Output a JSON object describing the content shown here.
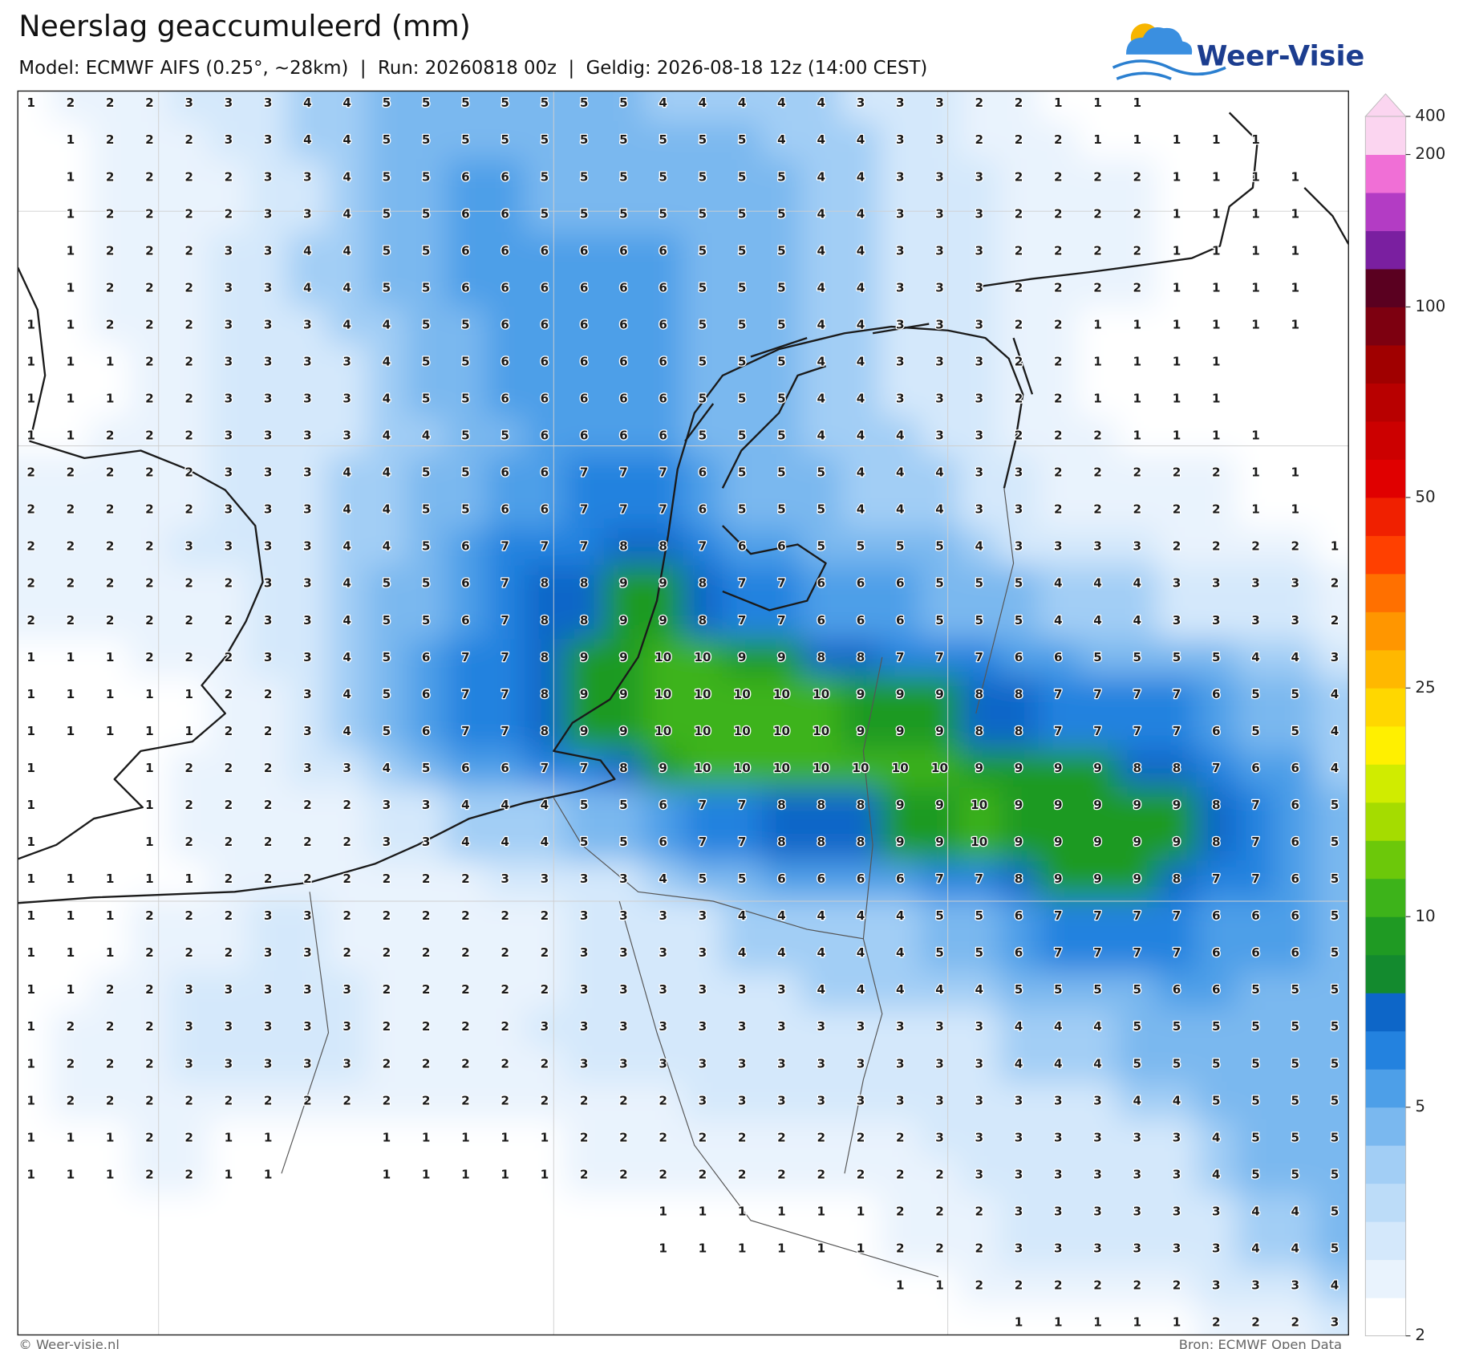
{
  "header": {
    "title": "Neerslag geaccumuleerd (mm)",
    "subtitle": "Model: ECMWF AIFS (0.25°, ~28km)  |  Run: 20260818 00z  |  Geldig: 2026-08-18 12z (14:00 CEST)",
    "logo": "Weer-Visie"
  },
  "map": {
    "grid": [
      [
        1,
        2,
        2,
        2,
        3,
        3,
        3,
        4,
        4,
        5,
        5,
        5,
        5,
        5,
        5,
        5,
        4,
        4,
        4,
        4,
        4,
        3,
        3,
        3,
        2,
        2,
        1,
        1,
        1,
        null,
        null,
        null,
        null,
        null
      ],
      [
        null,
        1,
        2,
        2,
        2,
        3,
        3,
        4,
        4,
        5,
        5,
        5,
        5,
        5,
        5,
        5,
        5,
        5,
        5,
        4,
        4,
        4,
        3,
        3,
        2,
        2,
        2,
        1,
        1,
        1,
        1,
        1,
        null,
        null
      ],
      [
        null,
        1,
        2,
        2,
        2,
        2,
        3,
        3,
        4,
        5,
        5,
        6,
        6,
        5,
        5,
        5,
        5,
        5,
        5,
        5,
        4,
        4,
        3,
        3,
        3,
        2,
        2,
        2,
        2,
        1,
        1,
        1,
        1,
        null
      ],
      [
        null,
        1,
        2,
        2,
        2,
        2,
        3,
        3,
        4,
        5,
        5,
        6,
        6,
        5,
        5,
        5,
        5,
        5,
        5,
        5,
        4,
        4,
        3,
        3,
        3,
        2,
        2,
        2,
        2,
        1,
        1,
        1,
        1,
        null
      ],
      [
        null,
        1,
        2,
        2,
        2,
        3,
        3,
        4,
        4,
        5,
        5,
        6,
        6,
        6,
        6,
        6,
        6,
        5,
        5,
        5,
        4,
        4,
        3,
        3,
        3,
        2,
        2,
        2,
        2,
        1,
        1,
        1,
        1,
        null
      ],
      [
        null,
        1,
        2,
        2,
        2,
        3,
        3,
        4,
        4,
        5,
        5,
        6,
        6,
        6,
        6,
        6,
        6,
        5,
        5,
        5,
        4,
        4,
        3,
        3,
        3,
        2,
        2,
        2,
        2,
        1,
        1,
        1,
        1,
        null
      ],
      [
        1,
        1,
        2,
        2,
        2,
        3,
        3,
        3,
        4,
        4,
        5,
        5,
        6,
        6,
        6,
        6,
        6,
        5,
        5,
        5,
        4,
        4,
        3,
        3,
        3,
        2,
        2,
        1,
        1,
        1,
        1,
        1,
        1,
        null
      ],
      [
        1,
        1,
        1,
        2,
        2,
        3,
        3,
        3,
        3,
        4,
        5,
        5,
        6,
        6,
        6,
        6,
        6,
        5,
        5,
        5,
        4,
        4,
        3,
        3,
        3,
        2,
        2,
        1,
        1,
        1,
        1,
        null,
        null,
        null
      ],
      [
        1,
        1,
        1,
        2,
        2,
        3,
        3,
        3,
        3,
        4,
        5,
        5,
        6,
        6,
        6,
        6,
        6,
        5,
        5,
        5,
        4,
        4,
        3,
        3,
        3,
        2,
        2,
        1,
        1,
        1,
        1,
        null,
        null,
        null
      ],
      [
        1,
        1,
        2,
        2,
        2,
        3,
        3,
        3,
        3,
        4,
        4,
        5,
        5,
        6,
        6,
        6,
        6,
        5,
        5,
        5,
        4,
        4,
        4,
        3,
        3,
        2,
        2,
        2,
        1,
        1,
        1,
        1,
        null,
        null
      ],
      [
        2,
        2,
        2,
        2,
        2,
        3,
        3,
        3,
        4,
        4,
        5,
        5,
        6,
        6,
        7,
        7,
        7,
        6,
        5,
        5,
        5,
        4,
        4,
        4,
        3,
        3,
        2,
        2,
        2,
        2,
        2,
        1,
        1,
        null
      ],
      [
        2,
        2,
        2,
        2,
        2,
        3,
        3,
        3,
        4,
        4,
        5,
        5,
        6,
        6,
        7,
        7,
        7,
        6,
        5,
        5,
        5,
        4,
        4,
        4,
        3,
        3,
        2,
        2,
        2,
        2,
        2,
        1,
        1,
        null
      ],
      [
        2,
        2,
        2,
        2,
        3,
        3,
        3,
        3,
        4,
        4,
        5,
        6,
        7,
        7,
        7,
        8,
        8,
        7,
        6,
        6,
        5,
        5,
        5,
        5,
        4,
        3,
        3,
        3,
        3,
        2,
        2,
        2,
        2,
        1
      ],
      [
        2,
        2,
        2,
        2,
        2,
        2,
        3,
        3,
        4,
        5,
        5,
        6,
        7,
        8,
        8,
        9,
        9,
        8,
        7,
        7,
        6,
        6,
        6,
        5,
        5,
        5,
        4,
        4,
        4,
        3,
        3,
        3,
        3,
        2
      ],
      [
        2,
        2,
        2,
        2,
        2,
        2,
        3,
        3,
        4,
        5,
        5,
        6,
        7,
        8,
        8,
        9,
        9,
        8,
        7,
        7,
        6,
        6,
        6,
        5,
        5,
        5,
        4,
        4,
        4,
        3,
        3,
        3,
        3,
        2
      ],
      [
        1,
        1,
        1,
        2,
        2,
        2,
        3,
        3,
        4,
        5,
        6,
        7,
        7,
        8,
        9,
        9,
        10,
        10,
        9,
        9,
        8,
        8,
        7,
        7,
        7,
        6,
        6,
        5,
        5,
        5,
        5,
        4,
        4,
        3
      ],
      [
        1,
        1,
        1,
        1,
        1,
        2,
        2,
        3,
        4,
        5,
        6,
        7,
        7,
        8,
        9,
        9,
        10,
        10,
        10,
        10,
        10,
        9,
        9,
        9,
        8,
        8,
        7,
        7,
        7,
        7,
        6,
        5,
        5,
        4
      ],
      [
        1,
        1,
        1,
        1,
        1,
        2,
        2,
        3,
        4,
        5,
        6,
        7,
        7,
        8,
        9,
        9,
        10,
        10,
        10,
        10,
        10,
        9,
        9,
        9,
        8,
        8,
        7,
        7,
        7,
        7,
        6,
        5,
        5,
        4
      ],
      [
        1,
        null,
        null,
        1,
        2,
        2,
        2,
        3,
        3,
        4,
        5,
        6,
        6,
        7,
        7,
        8,
        9,
        10,
        10,
        10,
        10,
        10,
        10,
        10,
        9,
        9,
        9,
        9,
        8,
        8,
        7,
        6,
        6,
        4
      ],
      [
        1,
        null,
        null,
        1,
        2,
        2,
        2,
        2,
        2,
        3,
        3,
        4,
        4,
        4,
        5,
        5,
        6,
        7,
        7,
        8,
        8,
        8,
        9,
        9,
        10,
        9,
        9,
        9,
        9,
        9,
        8,
        7,
        6,
        5
      ],
      [
        1,
        null,
        null,
        1,
        2,
        2,
        2,
        2,
        2,
        3,
        3,
        4,
        4,
        4,
        5,
        5,
        6,
        7,
        7,
        8,
        8,
        8,
        9,
        9,
        10,
        9,
        9,
        9,
        9,
        9,
        8,
        7,
        6,
        5
      ],
      [
        1,
        1,
        1,
        1,
        1,
        2,
        2,
        2,
        2,
        2,
        2,
        2,
        3,
        3,
        3,
        3,
        4,
        5,
        5,
        6,
        6,
        6,
        6,
        7,
        7,
        8,
        9,
        9,
        9,
        8,
        7,
        7,
        6,
        5
      ],
      [
        1,
        1,
        1,
        2,
        2,
        2,
        3,
        3,
        2,
        2,
        2,
        2,
        2,
        2,
        3,
        3,
        3,
        3,
        4,
        4,
        4,
        4,
        4,
        5,
        5,
        6,
        7,
        7,
        7,
        7,
        6,
        6,
        6,
        5
      ],
      [
        1,
        1,
        1,
        2,
        2,
        2,
        3,
        3,
        2,
        2,
        2,
        2,
        2,
        2,
        3,
        3,
        3,
        3,
        4,
        4,
        4,
        4,
        4,
        5,
        5,
        6,
        7,
        7,
        7,
        7,
        6,
        6,
        6,
        5
      ],
      [
        1,
        1,
        2,
        2,
        3,
        3,
        3,
        3,
        3,
        2,
        2,
        2,
        2,
        2,
        3,
        3,
        3,
        3,
        3,
        3,
        4,
        4,
        4,
        4,
        4,
        5,
        5,
        5,
        5,
        6,
        6,
        5,
        5,
        5
      ],
      [
        1,
        2,
        2,
        2,
        3,
        3,
        3,
        3,
        3,
        2,
        2,
        2,
        2,
        3,
        3,
        3,
        3,
        3,
        3,
        3,
        3,
        3,
        3,
        3,
        3,
        4,
        4,
        4,
        5,
        5,
        5,
        5,
        5,
        5
      ],
      [
        1,
        2,
        2,
        2,
        3,
        3,
        3,
        3,
        3,
        2,
        2,
        2,
        2,
        2,
        3,
        3,
        3,
        3,
        3,
        3,
        3,
        3,
        3,
        3,
        3,
        4,
        4,
        4,
        5,
        5,
        5,
        5,
        5,
        5
      ],
      [
        1,
        2,
        2,
        2,
        2,
        2,
        2,
        2,
        2,
        2,
        2,
        2,
        2,
        2,
        2,
        2,
        2,
        3,
        3,
        3,
        3,
        3,
        3,
        3,
        3,
        3,
        3,
        3,
        4,
        4,
        5,
        5,
        5,
        5
      ],
      [
        1,
        1,
        1,
        2,
        2,
        1,
        1,
        null,
        null,
        1,
        1,
        1,
        1,
        1,
        2,
        2,
        2,
        2,
        2,
        2,
        2,
        2,
        2,
        3,
        3,
        3,
        3,
        3,
        3,
        3,
        4,
        5,
        5,
        5
      ],
      [
        1,
        1,
        1,
        2,
        2,
        1,
        1,
        null,
        null,
        1,
        1,
        1,
        1,
        1,
        2,
        2,
        2,
        2,
        2,
        2,
        2,
        2,
        2,
        2,
        3,
        3,
        3,
        3,
        3,
        3,
        4,
        5,
        5,
        5
      ],
      [
        null,
        null,
        null,
        null,
        null,
        null,
        null,
        null,
        null,
        null,
        null,
        null,
        null,
        null,
        null,
        null,
        1,
        1,
        1,
        1,
        1,
        1,
        2,
        2,
        2,
        3,
        3,
        3,
        3,
        3,
        3,
        4,
        4,
        5
      ],
      [
        null,
        null,
        null,
        null,
        null,
        null,
        null,
        null,
        null,
        null,
        null,
        null,
        null,
        null,
        null,
        null,
        1,
        1,
        1,
        1,
        1,
        1,
        2,
        2,
        2,
        3,
        3,
        3,
        3,
        3,
        3,
        4,
        4,
        5
      ],
      [
        null,
        null,
        null,
        null,
        null,
        null,
        null,
        null,
        null,
        null,
        null,
        null,
        null,
        null,
        null,
        null,
        null,
        null,
        null,
        null,
        null,
        null,
        1,
        1,
        2,
        2,
        2,
        2,
        2,
        2,
        3,
        3,
        3,
        4
      ],
      [
        null,
        null,
        null,
        null,
        null,
        null,
        null,
        null,
        null,
        null,
        null,
        null,
        null,
        null,
        null,
        null,
        null,
        null,
        null,
        null,
        null,
        null,
        null,
        null,
        null,
        1,
        1,
        1,
        1,
        1,
        2,
        2,
        2,
        3
      ]
    ]
  },
  "colorbar": {
    "colors": [
      "#ffffff",
      "#e9f3fd",
      "#d4e8fb",
      "#bcdcf8",
      "#a2cef5",
      "#7ab8ef",
      "#4d9fe8",
      "#2382df",
      "#0d66c8",
      "#138a2e",
      "#1f9a23",
      "#3db31a",
      "#6cc80a",
      "#a5dc00",
      "#d0ec00",
      "#fff000",
      "#ffd700",
      "#ffb800",
      "#ff9600",
      "#ff7000",
      "#ff4000",
      "#f02000",
      "#e00000",
      "#cc0000",
      "#b80000",
      "#a00000",
      "#7d0010",
      "#5a0020",
      "#7a1fa0",
      "#b33cc4",
      "#f06fd6",
      "#fbd5f0"
    ],
    "ticks": [
      2,
      5,
      10,
      25,
      50,
      100,
      200,
      400
    ]
  },
  "footer": {
    "copyright": "© Weer-visie.nl",
    "source": "Bron: ECMWF Open Data"
  }
}
